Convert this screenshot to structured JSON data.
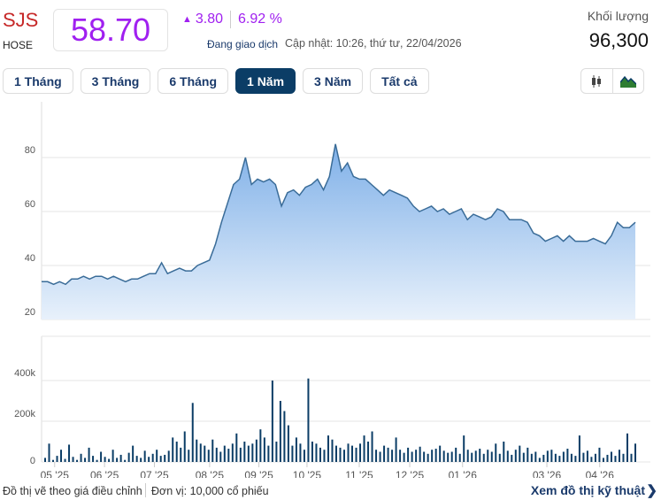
{
  "header": {
    "ticker": "SJS",
    "exchange": "HOSE",
    "price": "58.70",
    "change": "3.80",
    "change_pct": "6.92 %",
    "status": "Đang giao dịch",
    "updated": "Cập nhật: 10:26, thứ tư, 22/04/2026",
    "volume_label": "Khối lượng",
    "volume_value": "96,300",
    "up_color": "#a020f0"
  },
  "tabs": [
    {
      "label": "1 Tháng"
    },
    {
      "label": "3 Tháng"
    },
    {
      "label": "6 Tháng"
    },
    {
      "label": "1 Năm",
      "active": true
    },
    {
      "label": "3 Năm"
    },
    {
      "label": "Tất cả"
    }
  ],
  "chart_types": [
    "candlestick-icon",
    "area-chart-icon"
  ],
  "chart_data": [
    {
      "type": "area",
      "title": "Price",
      "y_ticks": [
        "80",
        "60",
        "40",
        "20"
      ],
      "y_tick_values": [
        80,
        60,
        40,
        20
      ],
      "ylim": [
        20,
        100
      ],
      "x_labels": [
        "05 '25",
        "06 '25",
        "07 '25",
        "08 '25",
        "09 '25",
        "10 '25",
        "11 '25",
        "12 '25",
        "01 '26",
        "03 '26",
        "04 '26"
      ],
      "x_label_pos": [
        0.022,
        0.106,
        0.19,
        0.283,
        0.366,
        0.447,
        0.535,
        0.62,
        0.709,
        0.851,
        0.94
      ],
      "values": [
        34,
        34,
        33,
        34,
        33,
        35,
        35,
        36,
        35,
        36,
        36,
        35,
        36,
        35,
        34,
        35,
        35,
        36,
        37,
        37,
        41,
        37,
        38,
        39,
        38,
        38,
        40,
        41,
        42,
        48,
        56,
        63,
        70,
        72,
        80,
        70,
        72,
        71,
        72,
        70,
        62,
        67,
        68,
        66,
        69,
        70,
        72,
        68,
        73,
        85,
        75,
        78,
        73,
        72,
        72,
        70,
        68,
        66,
        68,
        67,
        66,
        65,
        62,
        60,
        61,
        62,
        60,
        61,
        59,
        60,
        61,
        57,
        59,
        58,
        57,
        58,
        61,
        60,
        57,
        57,
        57,
        56,
        52,
        51,
        49,
        50,
        51,
        49,
        51,
        49,
        49,
        49,
        50,
        49,
        48,
        51,
        56,
        54,
        54,
        56
      ]
    },
    {
      "type": "bar",
      "title": "Volume",
      "y_ticks": [
        "400k",
        "200k",
        "0"
      ],
      "y_tick_values": [
        400,
        200,
        0
      ],
      "ylim": [
        0,
        450
      ],
      "values": [
        20,
        90,
        10,
        30,
        60,
        15,
        85,
        25,
        10,
        40,
        20,
        70,
        30,
        10,
        50,
        25,
        15,
        60,
        20,
        35,
        10,
        45,
        80,
        30,
        20,
        55,
        25,
        40,
        60,
        30,
        35,
        55,
        120,
        100,
        70,
        150,
        60,
        290,
        110,
        90,
        80,
        60,
        110,
        70,
        50,
        80,
        65,
        90,
        140,
        70,
        100,
        80,
        90,
        110,
        160,
        120,
        80,
        400,
        100,
        300,
        250,
        180,
        80,
        120,
        90,
        60,
        410,
        100,
        90,
        70,
        60,
        130,
        110,
        80,
        70,
        60,
        90,
        80,
        70,
        90,
        130,
        100,
        150,
        60,
        50,
        80,
        70,
        60,
        120,
        60,
        45,
        70,
        50,
        60,
        75,
        50,
        40,
        60,
        65,
        80,
        55,
        45,
        50,
        70,
        40,
        130,
        60,
        45,
        55,
        65,
        40,
        60,
        50,
        90,
        40,
        100,
        55,
        35,
        60,
        80,
        45,
        70,
        40,
        50,
        20,
        35,
        55,
        60,
        40,
        30,
        50,
        65,
        40,
        30,
        130,
        45,
        55,
        25,
        40,
        70,
        20,
        35,
        50,
        30,
        60,
        40,
        140,
        40,
        90
      ]
    }
  ],
  "footer": {
    "note": "Đồ thị vẽ theo giá điều chỉnh",
    "unit": "Đơn vị: 10,000 cổ phiếu",
    "tech_link": "Xem đồ thị kỹ thuật",
    "chevron": "❯"
  }
}
